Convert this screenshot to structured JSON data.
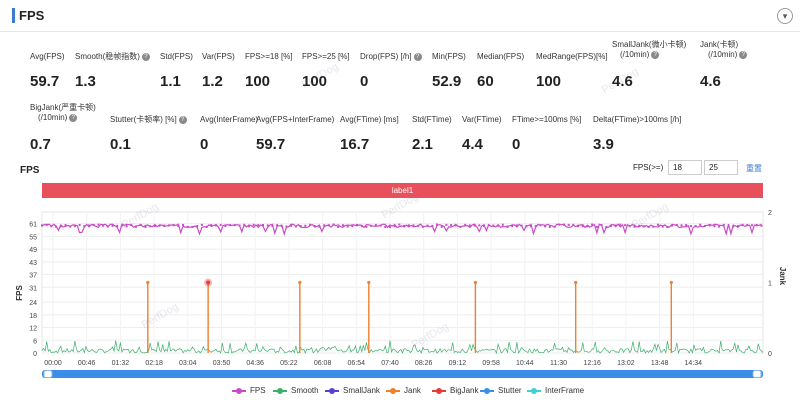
{
  "header": {
    "title": "FPS",
    "collapse_icon": "chevron-down-icon"
  },
  "watermark_text": "PerfDog",
  "metrics": [
    {
      "label": "Avg(FPS)",
      "value": "59.7",
      "help": false
    },
    {
      "label": "Smooth(稳帧指数)",
      "value": "1.3",
      "help": true
    },
    {
      "label": "Std(FPS)",
      "value": "1.1",
      "help": false
    },
    {
      "label": "Var(FPS)",
      "value": "1.2",
      "help": false
    },
    {
      "label": "FPS>=18 [%]",
      "value": "100",
      "help": false
    },
    {
      "label": "FPS>=25 [%]",
      "value": "100",
      "help": false
    },
    {
      "label": "Drop(FPS) [/h]",
      "value": "0",
      "help": true
    },
    {
      "label": "Min(FPS)",
      "value": "52.9",
      "help": false
    },
    {
      "label": "Median(FPS)",
      "value": "60",
      "help": false
    },
    {
      "label": "MedRange(FPS)[%]",
      "value": "100",
      "help": false
    },
    {
      "label": "SmallJank(微小卡顿)",
      "label2": "(/10min)",
      "value": "4.6",
      "help": true
    },
    {
      "label": "Jank(卡顿)",
      "label2": "(/10min)",
      "value": "4.6",
      "help": true
    },
    {
      "label": "BigJank(严重卡顿)",
      "label2": "(/10min)",
      "value": "0.7",
      "help": true
    },
    {
      "label": "Stutter(卡顿率) [%]",
      "value": "0.1",
      "help": true
    },
    {
      "label": "Avg(InterFrame)",
      "value": "0",
      "help": false
    },
    {
      "label": "Avg(FPS+InterFrame)",
      "value": "59.7",
      "help": false
    },
    {
      "label": "Avg(FTime) [ms]",
      "value": "16.7",
      "help": false
    },
    {
      "label": "Std(FTime)",
      "value": "2.1",
      "help": false
    },
    {
      "label": "Var(FTime)",
      "value": "4.4",
      "help": false
    },
    {
      "label": "FTime>=100ms [%]",
      "value": "0",
      "help": false
    },
    {
      "label": "Delta(FTime)>100ms [/h]",
      "value": "3.9",
      "help": false
    }
  ],
  "chart": {
    "section_title": "FPS",
    "filter_label": "FPS(>=)",
    "filter_low": "18",
    "filter_high": "25",
    "reset_label": "重置",
    "label_bar": "label1",
    "help_icon": "question-circle-icon"
  },
  "chart_data": {
    "type": "line",
    "ylabel": "FPS",
    "ylabel_right": "Jank",
    "y_ticks": [
      0,
      6,
      12,
      18,
      24,
      31,
      37,
      43,
      49,
      55,
      61
    ],
    "y_right_ticks": [
      0,
      1,
      2
    ],
    "x_ticks": [
      "00:00",
      "00:46",
      "01:32",
      "02:18",
      "03:04",
      "03:50",
      "04:36",
      "05:22",
      "06:08",
      "06:54",
      "07:40",
      "08:26",
      "09:12",
      "09:58",
      "10:44",
      "11:30",
      "12:16",
      "13:02",
      "13:48",
      "14:34"
    ],
    "duration_s": 920,
    "fps_baseline": 60,
    "fps_range": [
      52.9,
      61
    ],
    "jank_times_s": [
      135,
      212,
      329,
      417,
      553,
      681,
      803
    ],
    "bigjank_times_s": [
      212
    ],
    "jank_level": 1,
    "grid": true,
    "legend": [
      {
        "name": "FPS",
        "color": "#c94bc9"
      },
      {
        "name": "Smooth",
        "color": "#3bb06b"
      },
      {
        "name": "SmallJank",
        "color": "#5a3fd6"
      },
      {
        "name": "Jank",
        "color": "#f07f2e"
      },
      {
        "name": "BigJank",
        "color": "#e83a3a"
      },
      {
        "name": "Stutter",
        "color": "#3a8ee8"
      },
      {
        "name": "InterFrame",
        "color": "#40d0d0"
      }
    ],
    "legend_position": "bottom"
  }
}
